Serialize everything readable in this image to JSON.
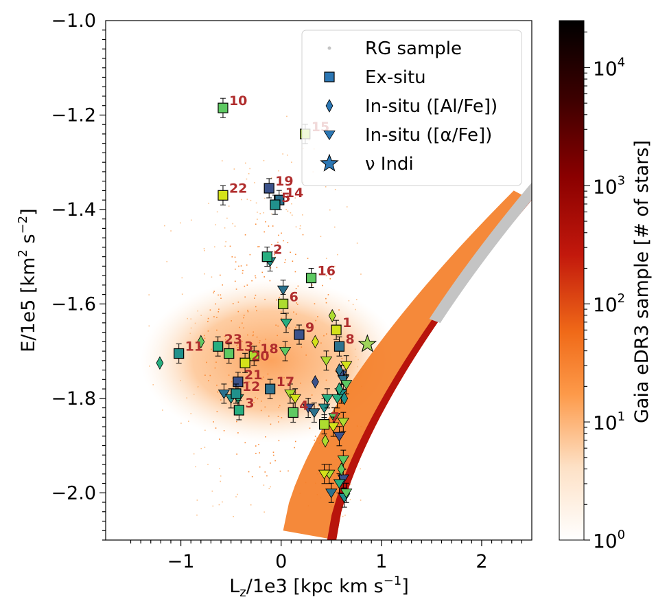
{
  "chart_data": {
    "type": "scatter",
    "xlabel": "L",
    "xlabel_sub": "z",
    "xlabel_rest": "/1e3 [kpc km s",
    "xlabel_exp": "−1",
    "xlabel_end": "]",
    "ylabel": "E/1e5 [km",
    "ylabel_exp1": "2",
    "ylabel_mid": " s",
    "ylabel_exp2": "−2",
    "ylabel_end": "]",
    "xlim": [
      -1.75,
      2.5
    ],
    "ylim": [
      -2.1,
      -1.0
    ],
    "x_ticks": [
      {
        "v": -1,
        "label": "−1"
      },
      {
        "v": 0,
        "label": "0"
      },
      {
        "v": 1,
        "label": "1"
      },
      {
        "v": 2,
        "label": "2"
      }
    ],
    "y_ticks": [
      {
        "v": -1.0,
        "label": "−1.0"
      },
      {
        "v": -1.2,
        "label": "−1.2"
      },
      {
        "v": -1.4,
        "label": "−1.4"
      },
      {
        "v": -1.6,
        "label": "−1.6"
      },
      {
        "v": -1.8,
        "label": "−1.8"
      },
      {
        "v": -2.0,
        "label": "−2.0"
      }
    ],
    "legend": {
      "placement": "top-right",
      "entries": [
        {
          "label": "RG sample",
          "marker": "dot",
          "color": "#c4c4c4"
        },
        {
          "label": "Ex-situ",
          "marker": "square",
          "color": "#2c77b4"
        },
        {
          "label": "In-situ ([Al/Fe])",
          "marker": "diamond",
          "color": "#2c77b4"
        },
        {
          "label": "In-situ ([α/Fe])",
          "marker": "triangle_down",
          "color": "#2c77b4"
        },
        {
          "label": "ν Indi",
          "marker": "star",
          "color": "#2c77b4"
        }
      ]
    },
    "colorbar": {
      "label": "Gaia eDR3 sample [# of stars]",
      "scale": "log",
      "range": [
        1,
        25000
      ],
      "ticks": [
        {
          "v": 1,
          "base": "10",
          "exp": "0"
        },
        {
          "v": 10,
          "base": "10",
          "exp": "1"
        },
        {
          "v": 100,
          "base": "10",
          "exp": "2"
        },
        {
          "v": 1000,
          "base": "10",
          "exp": "3"
        },
        {
          "v": 10000,
          "base": "10",
          "exp": "4"
        }
      ],
      "colors": [
        "#ffffff",
        "#fdd6ad",
        "#fd8d3c",
        "#e35a14",
        "#b8100c",
        "#7a0000",
        "#3a0000",
        "#000000"
      ]
    },
    "ex_situ": [
      {
        "label": "10",
        "x": -0.58,
        "y": -1.185
      },
      {
        "label": "15",
        "x": 0.24,
        "y": -1.24
      },
      {
        "label": "22",
        "x": -0.58,
        "y": -1.37
      },
      {
        "label": "19",
        "x": -0.12,
        "y": -1.355
      },
      {
        "label": "14",
        "x": -0.02,
        "y": -1.38
      },
      {
        "label": "5",
        "x": -0.06,
        "y": -1.39
      },
      {
        "label": "2",
        "x": -0.14,
        "y": -1.5
      },
      {
        "label": "16",
        "x": 0.3,
        "y": -1.545
      },
      {
        "label": "6",
        "x": 0.02,
        "y": -1.6
      },
      {
        "label": "1",
        "x": 0.55,
        "y": -1.655
      },
      {
        "label": "9",
        "x": 0.18,
        "y": -1.665
      },
      {
        "label": "8",
        "x": 0.58,
        "y": -1.69
      },
      {
        "label": "11",
        "x": -1.02,
        "y": -1.705
      },
      {
        "label": "23",
        "x": -0.63,
        "y": -1.69
      },
      {
        "label": "13",
        "x": -0.52,
        "y": -1.705
      },
      {
        "label": "18",
        "x": -0.27,
        "y": -1.71
      },
      {
        "label": "20",
        "x": -0.36,
        "y": -1.725
      },
      {
        "label": "21",
        "x": -0.43,
        "y": -1.765
      },
      {
        "label": "17",
        "x": -0.11,
        "y": -1.78
      },
      {
        "label": "12",
        "x": -0.45,
        "y": -1.79
      },
      {
        "label": "3",
        "x": -0.42,
        "y": -1.825
      },
      {
        "label": "4",
        "x": 0.12,
        "y": -1.83
      },
      {
        "label": "7",
        "x": 0.43,
        "y": -1.855
      }
    ],
    "in_situ_alfe": [
      {
        "x": -1.21,
        "y": -1.725
      },
      {
        "x": -0.8,
        "y": -1.68
      },
      {
        "x": 0.51,
        "y": -1.625
      },
      {
        "x": 0.34,
        "y": -1.68
      },
      {
        "x": 0.34,
        "y": -1.765
      },
      {
        "x": 0.58,
        "y": -1.74
      },
      {
        "x": 0.63,
        "y": -1.8
      },
      {
        "x": 0.58,
        "y": -1.78
      },
      {
        "x": 0.6,
        "y": -1.95
      },
      {
        "x": 0.44,
        "y": -1.89
      }
    ],
    "in_situ_afe": [
      {
        "x": 0.02,
        "y": -1.57
      },
      {
        "x": -0.11,
        "y": -1.51
      },
      {
        "x": 0.05,
        "y": -1.64
      },
      {
        "x": 0.04,
        "y": -1.7
      },
      {
        "x": 0.45,
        "y": -1.72
      },
      {
        "x": 0.65,
        "y": -1.73
      },
      {
        "x": 0.6,
        "y": -1.75
      },
      {
        "x": 0.62,
        "y": -1.76
      },
      {
        "x": 0.6,
        "y": -1.79
      },
      {
        "x": 0.56,
        "y": -1.8
      },
      {
        "x": 0.65,
        "y": -1.77
      },
      {
        "x": 0.09,
        "y": -1.79
      },
      {
        "x": 0.14,
        "y": -1.8
      },
      {
        "x": 0.27,
        "y": -1.82
      },
      {
        "x": 0.33,
        "y": -1.83
      },
      {
        "x": 0.43,
        "y": -1.82
      },
      {
        "x": 0.46,
        "y": -1.8
      },
      {
        "x": 0.53,
        "y": -1.84
      },
      {
        "x": 0.62,
        "y": -1.85
      },
      {
        "x": 0.52,
        "y": -1.86
      },
      {
        "x": 0.58,
        "y": -1.88
      },
      {
        "x": -0.57,
        "y": -1.79
      },
      {
        "x": -0.5,
        "y": -1.8
      },
      {
        "x": -0.43,
        "y": -1.8
      },
      {
        "x": 0.62,
        "y": -1.93
      },
      {
        "x": 0.48,
        "y": -1.96
      },
      {
        "x": 0.43,
        "y": -1.96
      },
      {
        "x": 0.62,
        "y": -1.97
      },
      {
        "x": 0.5,
        "y": -2.0
      },
      {
        "x": 0.63,
        "y": -2.01
      },
      {
        "x": 0.58,
        "y": -1.98
      },
      {
        "x": 0.65,
        "y": -2.0
      }
    ],
    "nu_indi": {
      "x": 0.86,
      "y": -1.685
    }
  }
}
